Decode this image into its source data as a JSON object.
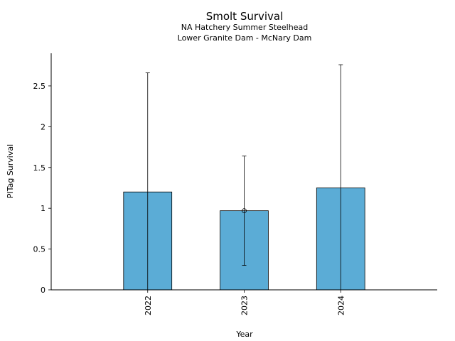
{
  "chart_data": {
    "type": "bar",
    "title": "Smolt Survival",
    "subtitle_lines": [
      "NA Hatchery Summer Steelhead",
      "Lower Granite Dam - McNary Dam"
    ],
    "xlabel": "Year",
    "ylabel": "PITag Survival",
    "categories": [
      "2022",
      "2023",
      "2024"
    ],
    "values": [
      1.2,
      0.97,
      1.25
    ],
    "error_lower": [
      null,
      0.3,
      null
    ],
    "error_upper": [
      2.66,
      1.64,
      2.76
    ],
    "ylim": [
      0,
      2.9
    ],
    "yticks": [
      0,
      0.5,
      1,
      1.5,
      2,
      2.5
    ],
    "ytick_labels": [
      "0",
      "0.5",
      "1",
      "1.5",
      "2",
      "2.5"
    ],
    "grid": false,
    "bar_color": "#5bacd6",
    "edge_color": "#000000"
  }
}
